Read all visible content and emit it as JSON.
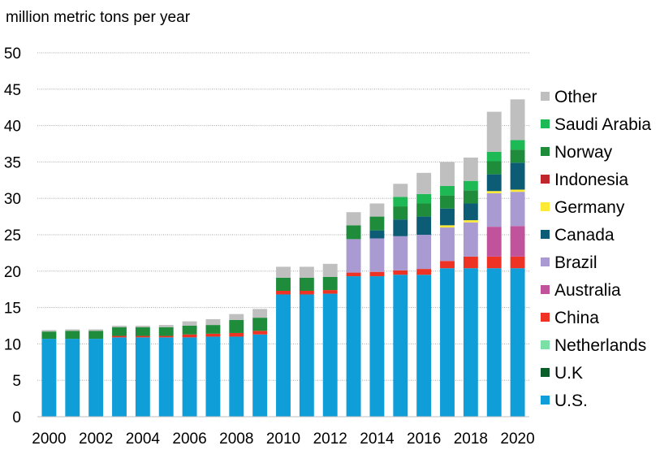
{
  "chart_data": {
    "type": "bar",
    "stacked": true,
    "title": "",
    "ylabel": "million metric tons per year",
    "xlabel": "",
    "ylim": [
      0,
      50
    ],
    "yticks": [
      0,
      5,
      10,
      15,
      20,
      25,
      30,
      35,
      40,
      45,
      50
    ],
    "grid": true,
    "legend_position": "right",
    "categories": [
      "2000",
      "2001",
      "2002",
      "2003",
      "2004",
      "2005",
      "2006",
      "2007",
      "2008",
      "2009",
      "2010",
      "2011",
      "2012",
      "2013",
      "2014",
      "2015",
      "2016",
      "2017",
      "2018",
      "2019",
      "2020"
    ],
    "xtick_labels": [
      "2000",
      "2002",
      "2004",
      "2006",
      "2008",
      "2010",
      "2012",
      "2014",
      "2016",
      "2018",
      "2020"
    ],
    "series": [
      {
        "name": "U.S.",
        "color": "#0f9ed8",
        "values": [
          10.7,
          10.7,
          10.7,
          10.9,
          10.9,
          10.9,
          10.9,
          11.0,
          11.0,
          11.3,
          16.8,
          16.8,
          16.9,
          19.3,
          19.3,
          19.5,
          19.5,
          20.4,
          20.4,
          20.4,
          20.4
        ]
      },
      {
        "name": "U.K",
        "color": "#0b5e2a",
        "values": [
          0,
          0,
          0,
          0,
          0,
          0,
          0,
          0,
          0,
          0,
          0,
          0,
          0,
          0,
          0,
          0,
          0,
          0,
          0,
          0,
          0
        ]
      },
      {
        "name": "Netherlands",
        "color": "#7be0a6",
        "values": [
          0,
          0,
          0,
          0,
          0,
          0,
          0,
          0,
          0,
          0,
          0,
          0,
          0,
          0,
          0,
          0,
          0,
          0,
          0,
          0,
          0
        ]
      },
      {
        "name": "China",
        "color": "#ee3224",
        "values": [
          0,
          0,
          0,
          0.2,
          0.2,
          0.2,
          0.4,
          0.4,
          0.5,
          0.5,
          0.5,
          0.5,
          0.5,
          0.5,
          0.6,
          0.6,
          0.8,
          1.0,
          1.6,
          1.6,
          1.6
        ]
      },
      {
        "name": "Australia",
        "color": "#c1539c",
        "values": [
          0,
          0,
          0,
          0,
          0,
          0,
          0,
          0,
          0,
          0,
          0,
          0,
          0,
          0,
          0,
          0,
          0,
          0,
          0,
          4.1,
          4.2
        ]
      },
      {
        "name": "Brazil",
        "color": "#a99bd1",
        "values": [
          0,
          0,
          0,
          0,
          0,
          0,
          0,
          0,
          0,
          0,
          0,
          0,
          0,
          4.6,
          4.6,
          4.7,
          4.7,
          4.6,
          4.7,
          4.6,
          4.7
        ]
      },
      {
        "name": "Germany",
        "color": "#ffe937",
        "values": [
          0,
          0,
          0,
          0,
          0,
          0,
          0,
          0,
          0,
          0,
          0,
          0,
          0,
          0,
          0,
          0,
          0,
          0.3,
          0.3,
          0.3,
          0.3
        ]
      },
      {
        "name": "Canada",
        "color": "#0d5c75",
        "values": [
          0,
          0,
          0,
          0,
          0,
          0,
          0,
          0,
          0,
          0,
          0,
          0,
          0,
          0,
          1.1,
          2.3,
          2.5,
          2.3,
          2.3,
          2.3,
          3.7
        ]
      },
      {
        "name": "Indonesia",
        "color": "#c0272d",
        "values": [
          0,
          0,
          0,
          0,
          0,
          0,
          0,
          0,
          0,
          0,
          0,
          0,
          0,
          0,
          0,
          0,
          0,
          0,
          0,
          0,
          0
        ]
      },
      {
        "name": "Norway",
        "color": "#1e8c3b",
        "values": [
          1.0,
          1.1,
          1.1,
          1.2,
          1.2,
          1.2,
          1.2,
          1.2,
          1.8,
          1.8,
          1.8,
          1.8,
          1.8,
          1.9,
          1.9,
          1.8,
          1.8,
          1.8,
          1.8,
          1.8,
          1.8
        ]
      },
      {
        "name": "Saudi Arabia",
        "color": "#1db954",
        "values": [
          0,
          0,
          0,
          0,
          0,
          0,
          0,
          0,
          0,
          0,
          0,
          0,
          0,
          0,
          0,
          1.3,
          1.3,
          1.3,
          1.3,
          1.3,
          1.3
        ]
      },
      {
        "name": "Other",
        "color": "#bfbfbf",
        "values": [
          0.2,
          0.2,
          0.2,
          0.2,
          0.2,
          0.3,
          0.6,
          0.8,
          0.8,
          1.2,
          1.5,
          1.5,
          1.8,
          1.8,
          1.8,
          1.8,
          2.9,
          3.3,
          3.2,
          5.5,
          5.6
        ]
      }
    ],
    "legend_order": [
      "Other",
      "Saudi Arabia",
      "Norway",
      "Indonesia",
      "Germany",
      "Canada",
      "Brazil",
      "Australia",
      "China",
      "Netherlands",
      "U.K",
      "U.S."
    ]
  }
}
